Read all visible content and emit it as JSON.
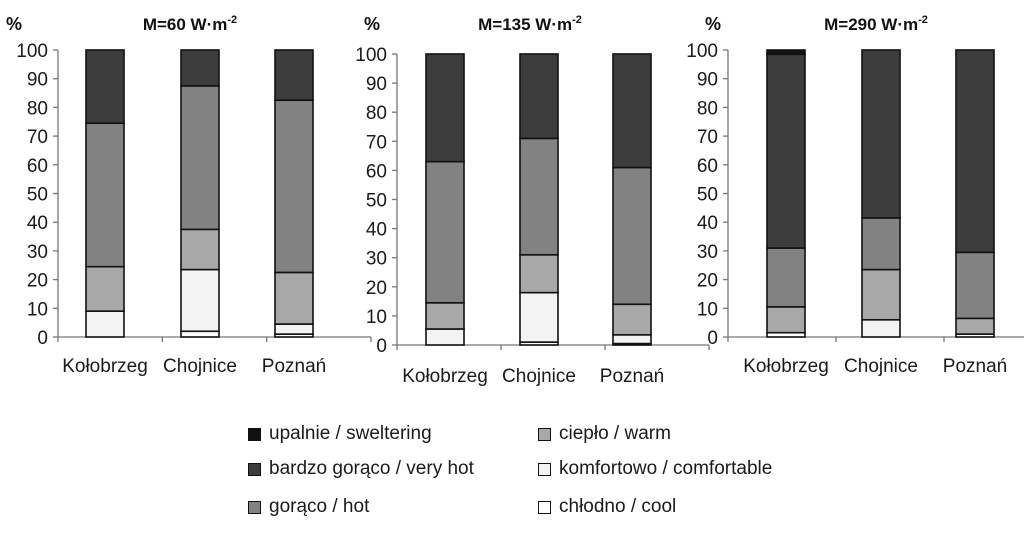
{
  "colors": {
    "upalnie": "#111111",
    "bardzo_goraco": "#3d3d3d",
    "goraco": "#828282",
    "cieplo": "#a8a8a8",
    "komfortowo": "#f3f3f3",
    "chlodno": "#ffffff"
  },
  "chart_data": [
    {
      "type": "bar",
      "stacked": true,
      "title_main": "M=60 W·m",
      "title_sup": "-2",
      "ylabel": "%",
      "ylim": [
        0,
        100
      ],
      "yticks": [
        "0",
        "10",
        "20",
        "30",
        "40",
        "50",
        "60",
        "70",
        "80",
        "90",
        "100"
      ],
      "categories": [
        "Kołobrzeg",
        "Chojnice",
        "Poznań"
      ],
      "series": [
        {
          "name": "chłodno / cool",
          "color_key": "chlodno",
          "values": [
            0,
            2,
            1
          ]
        },
        {
          "name": "komfortowo / comfortable",
          "color_key": "komfortowo",
          "values": [
            9,
            21.5,
            3.5
          ]
        },
        {
          "name": "ciepło / warm",
          "color_key": "cieplo",
          "values": [
            15.5,
            14,
            18
          ]
        },
        {
          "name": "gorąco / hot",
          "color_key": "goraco",
          "values": [
            50,
            50,
            60
          ]
        },
        {
          "name": "bardzo gorąco / very hot",
          "color_key": "bardzo_goraco",
          "values": [
            25.5,
            12.5,
            17.5
          ]
        },
        {
          "name": "upalnie / sweltering",
          "color_key": "upalnie",
          "values": [
            0,
            0,
            0
          ]
        }
      ]
    },
    {
      "type": "bar",
      "stacked": true,
      "title_main": "M=135 W·m",
      "title_sup": "-2",
      "ylabel": "%",
      "ylim": [
        0,
        100
      ],
      "yticks": [
        "0",
        "10",
        "20",
        "30",
        "40",
        "50",
        "60",
        "70",
        "80",
        "90",
        "100"
      ],
      "categories": [
        "Kołobrzeg",
        "Chojnice",
        "Poznań"
      ],
      "series": [
        {
          "name": "chłodno / cool",
          "color_key": "chlodno",
          "values": [
            0,
            1,
            0.5
          ]
        },
        {
          "name": "komfortowo / comfortable",
          "color_key": "komfortowo",
          "values": [
            5.5,
            17,
            3
          ]
        },
        {
          "name": "ciepło / warm",
          "color_key": "cieplo",
          "values": [
            9,
            13,
            10.5
          ]
        },
        {
          "name": "gorąco / hot",
          "color_key": "goraco",
          "values": [
            48.5,
            40,
            47
          ]
        },
        {
          "name": "bardzo gorąco / very hot",
          "color_key": "bardzo_goraco",
          "values": [
            37,
            29,
            39
          ]
        },
        {
          "name": "upalnie / sweltering",
          "color_key": "upalnie",
          "values": [
            0,
            0,
            0
          ]
        }
      ]
    },
    {
      "type": "bar",
      "stacked": true,
      "title_main": "M=290 W·m",
      "title_sup": "-2",
      "ylabel": "%",
      "ylim": [
        0,
        100
      ],
      "yticks": [
        "0",
        "10",
        "20",
        "30",
        "40",
        "50",
        "60",
        "70",
        "80",
        "90",
        "100"
      ],
      "categories": [
        "Kołobrzeg",
        "Chojnice",
        "Poznań"
      ],
      "series": [
        {
          "name": "chłodno / cool",
          "color_key": "chlodno",
          "values": [
            1.5,
            0,
            1
          ]
        },
        {
          "name": "komfortowo / comfortable",
          "color_key": "komfortowo",
          "values": [
            0,
            6,
            0
          ]
        },
        {
          "name": "ciepło / warm",
          "color_key": "cieplo",
          "values": [
            9,
            17.5,
            5.5
          ]
        },
        {
          "name": "gorąco / hot",
          "color_key": "goraco",
          "values": [
            20.5,
            18,
            23
          ]
        },
        {
          "name": "bardzo gorąco / very hot",
          "color_key": "bardzo_goraco",
          "values": [
            67.5,
            58.5,
            70.5
          ]
        },
        {
          "name": "upalnie / sweltering",
          "color_key": "upalnie",
          "values": [
            1.5,
            0,
            0
          ]
        }
      ]
    }
  ],
  "legend": {
    "items": [
      {
        "label": "upalnie / sweltering",
        "color_key": "upalnie"
      },
      {
        "label": "ciepło / warm",
        "color_key": "cieplo"
      },
      {
        "label": "bardzo gorąco / very hot",
        "color_key": "bardzo_goraco"
      },
      {
        "label": "komfortowo / comfortable",
        "color_key": "komfortowo"
      },
      {
        "label": "gorąco / hot",
        "color_key": "goraco"
      },
      {
        "label": "chłodno / cool",
        "color_key": "chlodno"
      }
    ]
  }
}
